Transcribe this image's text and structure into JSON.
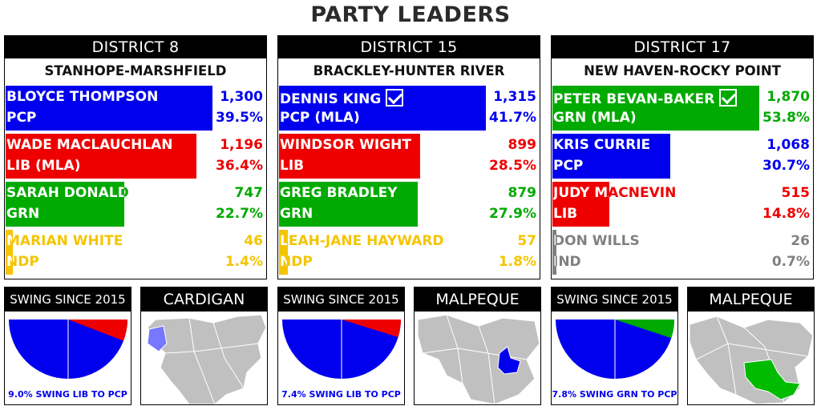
{
  "title": "PARTY LEADERS",
  "colors": {
    "PCP": "#0000ee",
    "LIB": "#ee0000",
    "GRN": "#00aa00",
    "NDP": "#f5c400",
    "IND": "#808080"
  },
  "districts": [
    {
      "header": "DISTRICT 8",
      "name": "STANHOPE-MARSHFIELD",
      "candidates": [
        {
          "name": "BLOYCE THOMPSON",
          "party_label": "PCP",
          "party": "PCP",
          "votes": "1,300",
          "pct": "39.5%",
          "share": 39.5,
          "elected": false
        },
        {
          "name": "WADE MACLAUCHLAN",
          "party_label": "LIB (MLA)",
          "party": "LIB",
          "votes": "1,196",
          "pct": "36.4%",
          "share": 36.4,
          "elected": false
        },
        {
          "name": "SARAH DONALD",
          "party_label": "GRN",
          "party": "GRN",
          "votes": "747",
          "pct": "22.7%",
          "share": 22.7,
          "elected": false
        },
        {
          "name": "MARIAN WHITE",
          "party_label": "NDP",
          "party": "NDP",
          "votes": "46",
          "pct": "1.4%",
          "share": 1.4,
          "elected": false
        }
      ],
      "swing": {
        "header": "SWING SINCE 2015",
        "caption": "9.0% SWING LIB TO PCP",
        "from": "LIB",
        "to": "PCP",
        "swing_pct": 9.0
      },
      "map": {
        "header": "CARDIGAN",
        "highlight": "PCP"
      }
    },
    {
      "header": "DISTRICT 15",
      "name": "BRACKLEY-HUNTER RIVER",
      "candidates": [
        {
          "name": "DENNIS KING",
          "party_label": "PCP (MLA)",
          "party": "PCP",
          "votes": "1,315",
          "pct": "41.7%",
          "share": 41.7,
          "elected": true
        },
        {
          "name": "WINDSOR WIGHT",
          "party_label": "LIB",
          "party": "LIB",
          "votes": "899",
          "pct": "28.5%",
          "share": 28.5,
          "elected": false
        },
        {
          "name": "GREG BRADLEY",
          "party_label": "GRN",
          "party": "GRN",
          "votes": "879",
          "pct": "27.9%",
          "share": 27.9,
          "elected": false
        },
        {
          "name": "LEAH-JANE HAYWARD",
          "party_label": "NDP",
          "party": "NDP",
          "votes": "57",
          "pct": "1.8%",
          "share": 1.8,
          "elected": false
        }
      ],
      "swing": {
        "header": "SWING SINCE 2015",
        "caption": "7.4% SWING LIB TO PCP",
        "from": "LIB",
        "to": "PCP",
        "swing_pct": 7.4
      },
      "map": {
        "header": "MALPEQUE",
        "highlight": "PCP"
      }
    },
    {
      "header": "DISTRICT 17",
      "name": "NEW HAVEN-ROCKY POINT",
      "candidates": [
        {
          "name": "PETER BEVAN-BAKER",
          "party_label": "GRN (MLA)",
          "party": "GRN",
          "votes": "1,870",
          "pct": "53.8%",
          "share": 53.8,
          "elected": true
        },
        {
          "name": "KRIS CURRIE",
          "party_label": "PCP",
          "party": "PCP",
          "votes": "1,068",
          "pct": "30.7%",
          "share": 30.7,
          "elected": false
        },
        {
          "name": "JUDY MACNEVIN",
          "party_label": "LIB",
          "party": "LIB",
          "votes": "515",
          "pct": "14.8%",
          "share": 14.8,
          "elected": false
        },
        {
          "name": "DON WILLS",
          "party_label": "IND",
          "party": "IND",
          "votes": "26",
          "pct": "0.7%",
          "share": 0.7,
          "elected": false
        }
      ],
      "swing": {
        "header": "SWING SINCE 2015",
        "caption": "7.8% SWING GRN TO PCP",
        "from": "GRN",
        "to": "PCP",
        "swing_pct": 7.8
      },
      "map": {
        "header": "MALPEQUE",
        "highlight": "GRN"
      }
    }
  ]
}
